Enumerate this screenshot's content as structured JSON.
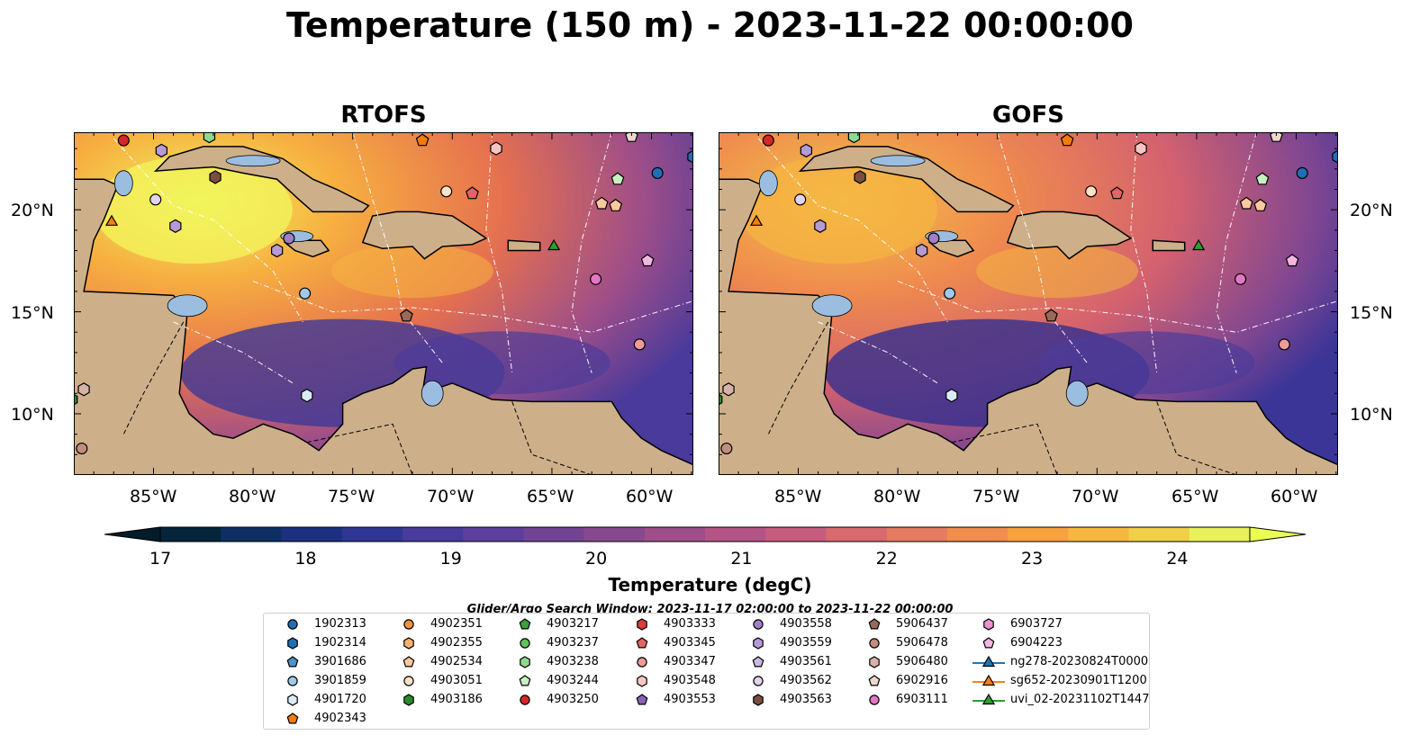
{
  "title": "Temperature (150 m) - 2023-11-22 00:00:00",
  "panels": [
    {
      "title": "RTOFS"
    },
    {
      "title": "GOFS"
    }
  ],
  "lat_labels": [
    "20°N",
    "15°N",
    "10°N"
  ],
  "lon_labels": [
    "85°W",
    "80°W",
    "75°W",
    "70°W",
    "65°W",
    "60°W"
  ],
  "colorbar": {
    "label": "Temperature (degC)",
    "ticks": [
      "17",
      "18",
      "19",
      "20",
      "21",
      "22",
      "23",
      "24"
    ],
    "colors": [
      "#05253a",
      "#0d2f63",
      "#1b317f",
      "#2f3694",
      "#483b9b",
      "#5c3f9c",
      "#714393",
      "#87498e",
      "#9e4e89",
      "#b35487",
      "#c65d7f",
      "#d86a6f",
      "#e57b60",
      "#f18d4e",
      "#f7a23f",
      "#f6b741",
      "#f1cf49",
      "#e8f15c"
    ]
  },
  "search_window": "Glider/Argo Search Window: 2023-11-17 02:00:00 to 2023-11-22 00:00:00",
  "legend": [
    {
      "label": "1902313",
      "color": "#1f6fb5",
      "shape": "circle"
    },
    {
      "label": "1902314",
      "color": "#1f6fb5",
      "shape": "hexagon"
    },
    {
      "label": "3901686",
      "color": "#4f93c8",
      "shape": "pentagon"
    },
    {
      "label": "3901859",
      "color": "#9ec9e8",
      "shape": "circle"
    },
    {
      "label": "4901720",
      "color": "#d8ecf8",
      "shape": "hexagon"
    },
    {
      "label": "4902343",
      "color": "#f27c0a",
      "shape": "pentagon"
    },
    {
      "label": "4902351",
      "color": "#f5923a",
      "shape": "circle"
    },
    {
      "label": "4902355",
      "color": "#f8b070",
      "shape": "hexagon"
    },
    {
      "label": "4902534",
      "color": "#fbc99d",
      "shape": "pentagon"
    },
    {
      "label": "4903051",
      "color": "#fde2c8",
      "shape": "circle"
    },
    {
      "label": "4903186",
      "color": "#2a8a2a",
      "shape": "hexagon"
    },
    {
      "label": "4903217",
      "color": "#3aa13a",
      "shape": "pentagon"
    },
    {
      "label": "4903237",
      "color": "#5cc45c",
      "shape": "circle"
    },
    {
      "label": "4903238",
      "color": "#8fd98f",
      "shape": "hexagon"
    },
    {
      "label": "4903244",
      "color": "#c6f0c0",
      "shape": "pentagon"
    },
    {
      "label": "4903250",
      "color": "#d62728",
      "shape": "circle"
    },
    {
      "label": "4903333",
      "color": "#dc3b3b",
      "shape": "hexagon"
    },
    {
      "label": "4903345",
      "color": "#e46565",
      "shape": "pentagon"
    },
    {
      "label": "4903347",
      "color": "#ee9a97",
      "shape": "circle"
    },
    {
      "label": "4903548",
      "color": "#f7c6c3",
      "shape": "hexagon"
    },
    {
      "label": "4903553",
      "color": "#8a63b8",
      "shape": "pentagon"
    },
    {
      "label": "4903558",
      "color": "#a07fc8",
      "shape": "circle"
    },
    {
      "label": "4903559",
      "color": "#b59bd5",
      "shape": "hexagon"
    },
    {
      "label": "4903561",
      "color": "#cdb8e2",
      "shape": "pentagon"
    },
    {
      "label": "4903562",
      "color": "#e2d4ef",
      "shape": "circle"
    },
    {
      "label": "4903563",
      "color": "#7a4e3e",
      "shape": "hexagon"
    },
    {
      "label": "5906437",
      "color": "#9a6a58",
      "shape": "pentagon"
    },
    {
      "label": "5906478",
      "color": "#c08e7c",
      "shape": "circle"
    },
    {
      "label": "5906480",
      "color": "#d8b2a6",
      "shape": "hexagon"
    },
    {
      "label": "6902916",
      "color": "#ecd6ce",
      "shape": "pentagon"
    },
    {
      "label": "6903111",
      "color": "#e377c2",
      "shape": "circle"
    },
    {
      "label": "6903727",
      "color": "#ea93d0",
      "shape": "hexagon"
    },
    {
      "label": "6904223",
      "color": "#f2b6e0",
      "shape": "pentagon"
    },
    {
      "label": "ng278-20230824T0000",
      "color": "#1f77b4",
      "shape": "triangle-line"
    },
    {
      "label": "sg652-20230901T1200",
      "color": "#ff7f0e",
      "shape": "triangle-line"
    },
    {
      "label": "uvi_02-20231102T1447",
      "color": "#2ca02c",
      "shape": "triangle-line"
    }
  ],
  "map_markers": [
    {
      "id": "4903250",
      "color": "#d62728",
      "shape": "circle",
      "lon": -86.5,
      "lat": 23.4
    },
    {
      "id": "4903559",
      "color": "#b59bd5",
      "shape": "hexagon",
      "lon": -84.6,
      "lat": 22.9
    },
    {
      "id": "4903238",
      "color": "#8fd98f",
      "shape": "hexagon",
      "lon": -82.2,
      "lat": 23.6
    },
    {
      "id": "4903563",
      "color": "#7a4e3e",
      "shape": "hexagon",
      "lon": -81.9,
      "lat": 21.6
    },
    {
      "id": "4903562",
      "color": "#e2d4ef",
      "shape": "circle",
      "lon": -84.9,
      "lat": 20.5
    },
    {
      "id": "sg652",
      "color": "#ff7f0e",
      "shape": "triangle",
      "lon": -87.1,
      "lat": 19.4
    },
    {
      "id": "4903559b",
      "color": "#b59bd5",
      "shape": "hexagon",
      "lon": -83.9,
      "lat": 19.2
    },
    {
      "id": "4903558",
      "color": "#a07fc8",
      "shape": "circle",
      "lon": -78.2,
      "lat": 18.6
    },
    {
      "id": "4903559c",
      "color": "#b59bd5",
      "shape": "hexagon",
      "lon": -78.8,
      "lat": 18.0
    },
    {
      "id": "3901859",
      "color": "#9ec9e8",
      "shape": "circle",
      "lon": -77.4,
      "lat": 15.9
    },
    {
      "id": "4902343",
      "color": "#f27c0a",
      "shape": "pentagon",
      "lon": -71.5,
      "lat": 23.4
    },
    {
      "id": "4903548",
      "color": "#f7c6c3",
      "shape": "hexagon",
      "lon": -67.8,
      "lat": 23.0
    },
    {
      "id": "4903051",
      "color": "#fde2c8",
      "shape": "circle",
      "lon": -70.3,
      "lat": 20.9
    },
    {
      "id": "4903345",
      "color": "#e46565",
      "shape": "pentagon",
      "lon": -69.0,
      "lat": 20.8
    },
    {
      "id": "6902916",
      "color": "#ecd6ce",
      "shape": "pentagon",
      "lon": -61.0,
      "lat": 23.6
    },
    {
      "id": "4903244",
      "color": "#c6f0c0",
      "shape": "pentagon",
      "lon": -61.7,
      "lat": 21.5
    },
    {
      "id": "1902313",
      "color": "#1f6fb5",
      "shape": "circle",
      "lon": -59.7,
      "lat": 21.8
    },
    {
      "id": "4902534",
      "color": "#fbc99d",
      "shape": "pentagon",
      "lon": -62.5,
      "lat": 20.3
    },
    {
      "id": "4902534b",
      "color": "#fbc99d",
      "shape": "pentagon",
      "lon": -61.8,
      "lat": 20.2
    },
    {
      "id": "uvi_02",
      "color": "#2ca02c",
      "shape": "triangle",
      "lon": -64.9,
      "lat": 18.2
    },
    {
      "id": "6904223",
      "color": "#f2b6e0",
      "shape": "pentagon",
      "lon": -60.2,
      "lat": 17.5
    },
    {
      "id": "6903111",
      "color": "#e377c2",
      "shape": "circle",
      "lon": -62.8,
      "lat": 16.6
    },
    {
      "id": "5906437",
      "color": "#9a6a58",
      "shape": "pentagon",
      "lon": -72.3,
      "lat": 14.8
    },
    {
      "id": "4903347",
      "color": "#ee9a97",
      "shape": "circle",
      "lon": -60.6,
      "lat": 13.4
    },
    {
      "id": "4901720",
      "color": "#d8ecf8",
      "shape": "hexagon",
      "lon": -77.3,
      "lat": 10.9
    },
    {
      "id": "5906480",
      "color": "#d8b2a6",
      "shape": "hexagon",
      "lon": -88.5,
      "lat": 11.2
    },
    {
      "id": "5906478",
      "color": "#c08e7c",
      "shape": "circle",
      "lon": -88.6,
      "lat": 8.3
    },
    {
      "id": "4903186",
      "color": "#2a8a2a",
      "shape": "hexagon",
      "lon": -89.1,
      "lat": 10.7
    },
    {
      "id": "1902314",
      "color": "#1f6fb5",
      "shape": "hexagon",
      "lon": -57.9,
      "lat": 22.6
    }
  ]
}
